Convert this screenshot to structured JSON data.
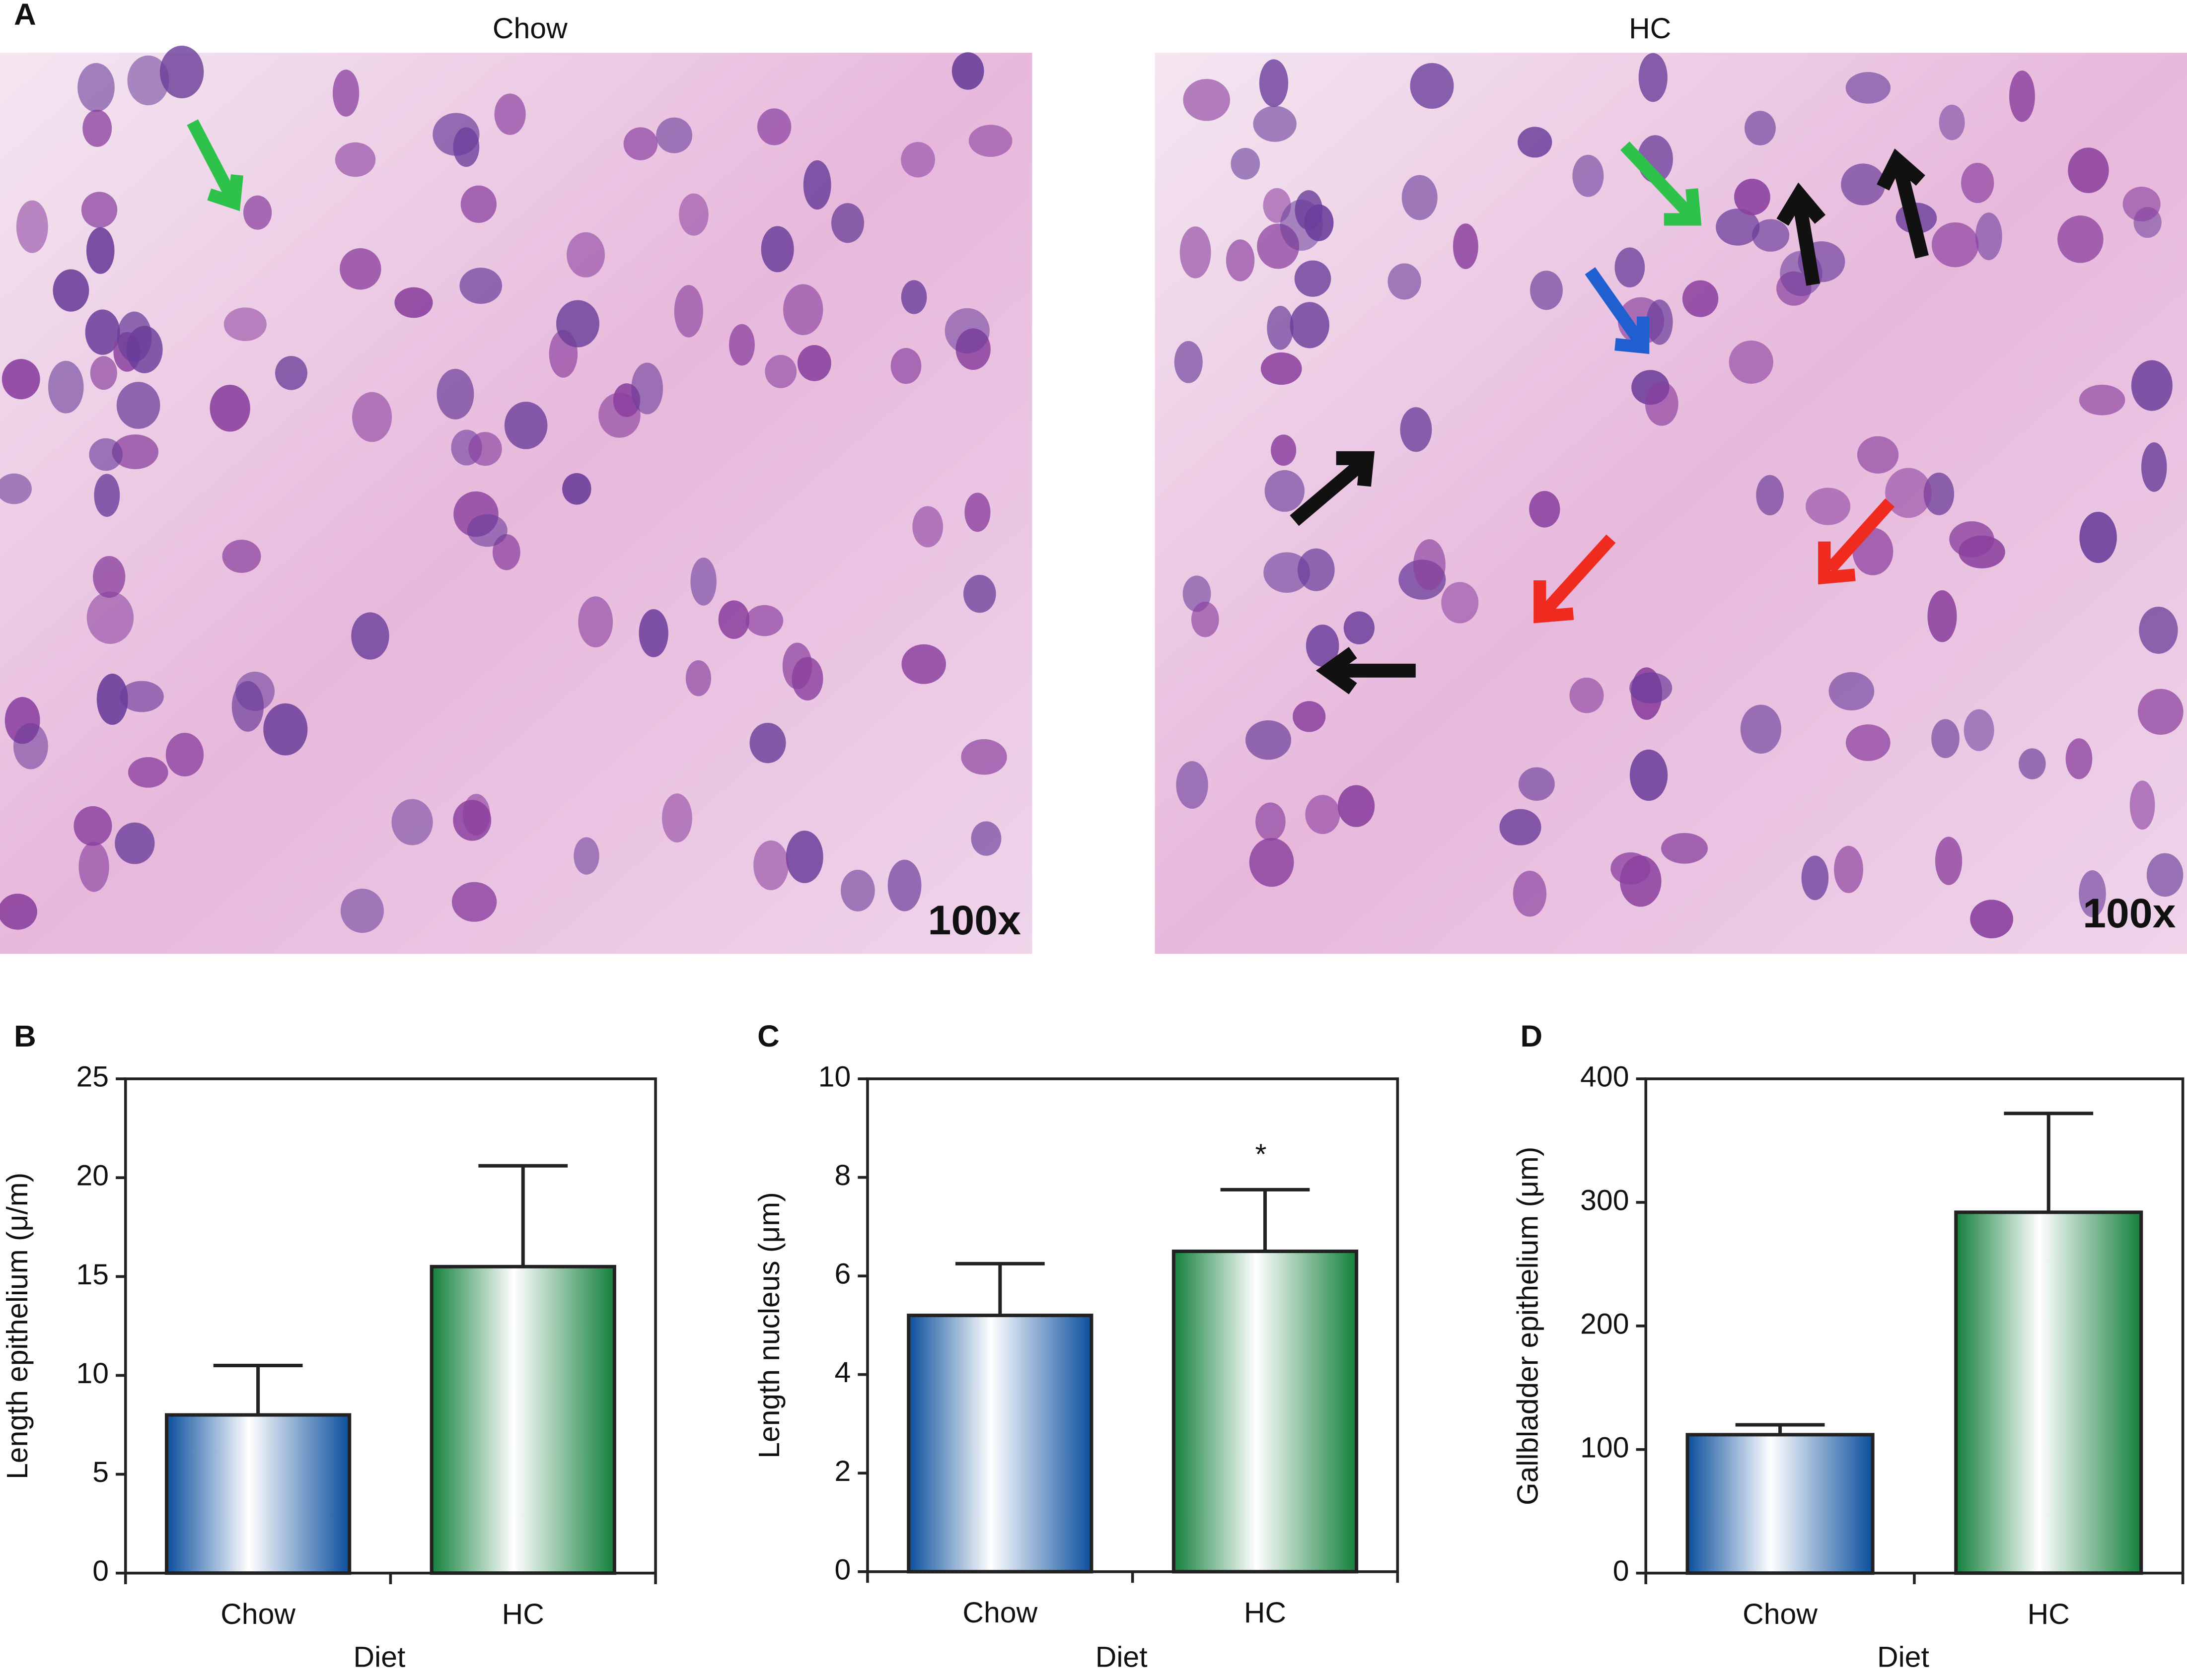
{
  "micrographs": {
    "panel": "A",
    "images": [
      {
        "title": "Chow",
        "magnification": "100x"
      },
      {
        "title": "HC",
        "magnification": "100x"
      }
    ]
  },
  "chart_data": [
    {
      "type": "bar",
      "panel": "B",
      "categories": [
        "Chow",
        "HC"
      ],
      "values": [
        8.0,
        15.5
      ],
      "errors": [
        2.5,
        5.1
      ],
      "colors": [
        "#0b4f9e",
        "#13803c"
      ],
      "ylim": [
        0,
        25
      ],
      "yticks": [
        0,
        5,
        10,
        15,
        20,
        25
      ],
      "ylabel": "Length epithelium (μ/m)",
      "xlabel": "Diet"
    },
    {
      "type": "bar",
      "panel": "C",
      "categories": [
        "Chow",
        "HC"
      ],
      "values": [
        5.2,
        6.5
      ],
      "errors": [
        1.05,
        1.25
      ],
      "colors": [
        "#0b4f9e",
        "#13803c"
      ],
      "ylim": [
        0,
        10
      ],
      "yticks": [
        0,
        2,
        4,
        6,
        8,
        10
      ],
      "ylabel": "Length nucleus (μm)",
      "xlabel": "Diet",
      "annotations": [
        {
          "text": "*",
          "category": "HC"
        }
      ]
    },
    {
      "type": "bar",
      "panel": "D",
      "categories": [
        "Chow",
        "HC"
      ],
      "values": [
        112,
        292
      ],
      "errors": [
        8,
        80
      ],
      "colors": [
        "#0b4f9e",
        "#13803c"
      ],
      "ylim": [
        0,
        400
      ],
      "yticks": [
        0,
        100,
        200,
        300,
        400
      ],
      "ylabel": "Gallbladder epithelium (μm)",
      "xlabel": "Diet"
    }
  ]
}
